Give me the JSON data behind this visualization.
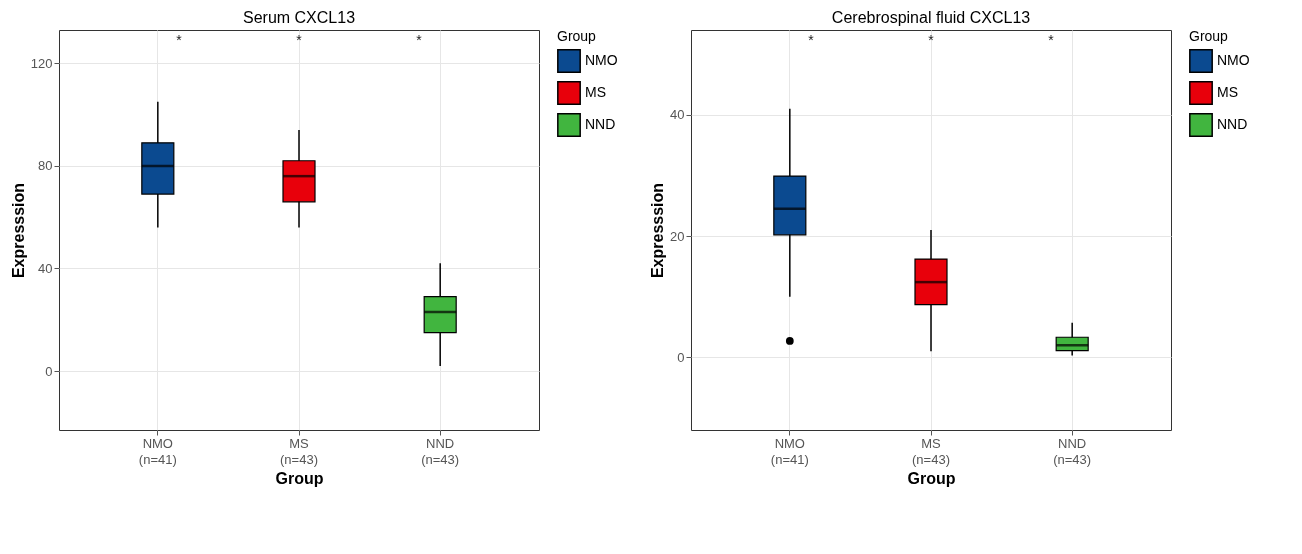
{
  "chart_data": [
    {
      "type": "box",
      "title": "Serum CXCL13",
      "xlabel": "Group",
      "ylabel": "Expresssion",
      "legend_title": "Group",
      "legend": "right",
      "grid": true,
      "categories": [
        "NMO\n(n=41)",
        "MS\n(n=43)",
        "NND\n(n=43)"
      ],
      "ylim": [
        -23,
        133
      ],
      "yticks": [
        0,
        40,
        80,
        120
      ],
      "series": [
        {
          "name": "NMO",
          "color": "#0b4a90",
          "boxes": [
            {
              "low": 56,
              "q1": 69,
              "median": 80,
              "q3": 89,
              "high": 105
            },
            null,
            null
          ]
        },
        {
          "name": "MS",
          "color": "#e8000b",
          "boxes": [
            null,
            {
              "low": 56,
              "q1": 66,
              "median": 76,
              "q3": 82,
              "high": 94
            },
            null
          ]
        },
        {
          "name": "NND",
          "color": "#41b53f",
          "boxes": [
            null,
            null,
            {
              "low": 2,
              "q1": 15,
              "median": 23,
              "q3": 29,
              "high": 42
            }
          ]
        }
      ],
      "annotations": [
        "*",
        "*",
        "*"
      ]
    },
    {
      "type": "box",
      "title": "Cerebrospinal fluid CXCL13",
      "xlabel": "Group",
      "ylabel": "Expresssion",
      "legend_title": "Group",
      "legend": "right",
      "grid": true,
      "categories": [
        "NMO\n(n=41)",
        "MS\n(n=43)",
        "NND\n(n=43)"
      ],
      "ylim": [
        -12,
        54
      ],
      "yticks": [
        0,
        20,
        40
      ],
      "series": [
        {
          "name": "NMO",
          "color": "#0b4a90",
          "boxes": [
            {
              "low": 10,
              "q1": 20.2,
              "median": 24.5,
              "q3": 29.9,
              "high": 41,
              "outliers": [
                2.7
              ]
            },
            null,
            null
          ]
        },
        {
          "name": "MS",
          "color": "#e8000b",
          "boxes": [
            null,
            {
              "low": 1,
              "q1": 8.7,
              "median": 12.4,
              "q3": 16.2,
              "high": 21
            },
            null
          ]
        },
        {
          "name": "NND",
          "color": "#41b53f",
          "boxes": [
            null,
            null,
            {
              "low": 0.3,
              "q1": 1.1,
              "median": 2,
              "q3": 3.3,
              "high": 5.7
            }
          ]
        }
      ],
      "annotations": [
        "*",
        "*",
        "*"
      ]
    }
  ]
}
